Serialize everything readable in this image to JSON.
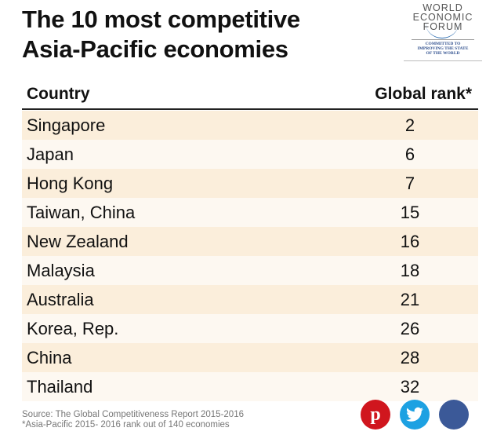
{
  "title": [
    "The 10 most competitive",
    "Asia-Pacific economies"
  ],
  "logo": {
    "name": [
      "WORLD",
      "ECONOMIC",
      "FORUM"
    ],
    "tagline": [
      "COMMITTED TO",
      "IMPROVING THE STATE",
      "OF THE WORLD"
    ]
  },
  "table": {
    "headers": [
      "Country",
      "Global rank*"
    ],
    "rows": [
      {
        "country": "Singapore",
        "rank": "2"
      },
      {
        "country": "Japan",
        "rank": "6"
      },
      {
        "country": "Hong Kong",
        "rank": "7"
      },
      {
        "country": "Taiwan, China",
        "rank": "15"
      },
      {
        "country": "New Zealand",
        "rank": "16"
      },
      {
        "country": "Malaysia",
        "rank": "18"
      },
      {
        "country": "Australia",
        "rank": "21"
      },
      {
        "country": "Korea, Rep.",
        "rank": "26"
      },
      {
        "country": "China",
        "rank": "28"
      },
      {
        "country": "Thailand",
        "rank": "32"
      }
    ]
  },
  "footer": {
    "source": "Source: The Global Competitiveness Report 2015-2016",
    "note": "*Asia-Pacific 2015- 2016 rank out of 140 economies"
  },
  "social": [
    {
      "icon": "pinterest-icon",
      "color": "#d0161e"
    },
    {
      "icon": "twitter-icon",
      "color": "#1da1e2"
    },
    {
      "icon": "facebook-icon",
      "color": "#3b5998"
    }
  ]
}
